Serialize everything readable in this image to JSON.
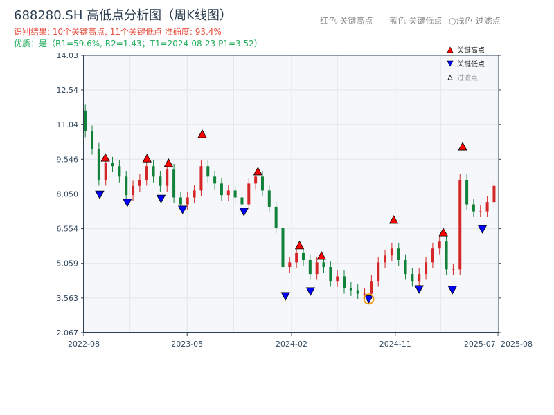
{
  "title": "688280.SH 高低点分析图（周K线图）",
  "result_line": "识别结果: 10个关键高点, 11个关键低点   准确度: 93.4%",
  "quality_line": "优质：是（R1=59.6%, R2=1.43；T1=2024-08-23 P1=3.52）",
  "top_notes": [
    "红色-关键高点",
    "蓝色-关键低点",
    "○浅色-过滤点"
  ],
  "colors": {
    "up": "#d62728",
    "down": "#12823a",
    "high_marker": "#ff0000",
    "low_marker": "#0000ff",
    "highlight": "#f39c12",
    "plot_bg": "#f5f7fa",
    "axis": "#2c3e50"
  },
  "chart_data": {
    "type": "candlestick",
    "xlim": [
      "2022-08-01",
      "2025-08-01"
    ],
    "ylim": [
      2.067,
      14.03
    ],
    "yticks": [
      "2.067",
      "3.563",
      "5.059",
      "6.554",
      "8.050",
      "9.546",
      "11.04",
      "12.54",
      "14.03"
    ],
    "xticks": [
      {
        "date": "2022-08-01",
        "label": "2022-08"
      },
      {
        "date": "2023-05-01",
        "label": "2023-05"
      },
      {
        "date": "2024-02-01",
        "label": "2024-02"
      },
      {
        "date": "2024-11-01",
        "label": "2024-11"
      },
      {
        "date": "2025-07-28",
        "label": "2025-07"
      },
      {
        "date": "2025-08-01",
        "label": "2025-08"
      }
    ],
    "grid": true,
    "dates": [
      "2022-08-05",
      "2022-08-23",
      "2022-09-10",
      "2022-09-28",
      "2022-10-16",
      "2022-11-03",
      "2022-11-21",
      "2022-12-09",
      "2022-12-27",
      "2023-01-14",
      "2023-02-01",
      "2023-02-19",
      "2023-03-09",
      "2023-03-27",
      "2023-04-14",
      "2023-05-02",
      "2023-05-20",
      "2023-06-07",
      "2023-06-25",
      "2023-07-13",
      "2023-07-31",
      "2023-08-18",
      "2023-09-05",
      "2023-09-23",
      "2023-10-11",
      "2023-10-29",
      "2023-11-16",
      "2023-12-04",
      "2023-12-22",
      "2024-01-09",
      "2024-01-27",
      "2024-02-14",
      "2024-03-03",
      "2024-03-21",
      "2024-04-08",
      "2024-04-26",
      "2024-05-14",
      "2024-06-01",
      "2024-06-19",
      "2024-07-07",
      "2024-07-25",
      "2024-08-12",
      "2024-08-30",
      "2024-09-17",
      "2024-10-05",
      "2024-10-23",
      "2024-11-10",
      "2024-11-28",
      "2024-12-16",
      "2025-01-03",
      "2025-01-21",
      "2025-02-08",
      "2025-02-26",
      "2025-03-16",
      "2025-04-03",
      "2025-04-21",
      "2025-05-09",
      "2025-05-27",
      "2025-06-14",
      "2025-07-02",
      "2025-07-20"
    ],
    "close": [
      10.75,
      10.0,
      8.66,
      9.4,
      9.25,
      8.8,
      8.0,
      8.4,
      8.66,
      9.25,
      8.8,
      8.4,
      9.1,
      7.9,
      7.6,
      7.9,
      8.2,
      9.25,
      8.8,
      8.5,
      8.0,
      8.2,
      7.9,
      7.6,
      8.5,
      8.8,
      8.2,
      7.5,
      6.6,
      4.9,
      5.1,
      5.5,
      5.2,
      4.6,
      5.1,
      4.9,
      4.3,
      4.5,
      4.0,
      3.9,
      3.75,
      3.75,
      4.3,
      5.1,
      5.4,
      5.7,
      5.2,
      4.6,
      4.3,
      4.6,
      5.1,
      5.7,
      6.0,
      4.8,
      4.8,
      8.66,
      7.6,
      7.3,
      7.3,
      7.7,
      8.4
    ],
    "key_highs": [
      {
        "date": "2022-09-27",
        "price": 9.61
      },
      {
        "date": "2023-01-15",
        "price": 9.58
      },
      {
        "date": "2023-03-13",
        "price": 9.38
      },
      {
        "date": "2023-06-10",
        "price": 10.63
      },
      {
        "date": "2023-11-04",
        "price": 9.02
      },
      {
        "date": "2024-02-22",
        "price": 5.83
      },
      {
        "date": "2024-04-20",
        "price": 5.38
      },
      {
        "date": "2024-10-28",
        "price": 6.93
      },
      {
        "date": "2025-03-08",
        "price": 6.39
      },
      {
        "date": "2025-04-28",
        "price": 10.09
      }
    ],
    "key_lows": [
      {
        "date": "2022-09-12",
        "price": 8.03
      },
      {
        "date": "2022-11-24",
        "price": 7.68
      },
      {
        "date": "2023-02-21",
        "price": 7.85
      },
      {
        "date": "2023-04-19",
        "price": 7.38
      },
      {
        "date": "2023-09-28",
        "price": 7.29
      },
      {
        "date": "2024-01-16",
        "price": 3.65
      },
      {
        "date": "2024-03-22",
        "price": 3.86
      },
      {
        "date": "2024-08-23",
        "price": 3.52
      },
      {
        "date": "2025-01-03",
        "price": 3.95
      },
      {
        "date": "2025-04-01",
        "price": 3.92
      },
      {
        "date": "2025-06-19",
        "price": 6.54
      }
    ],
    "highlight": {
      "date": "2024-08-23",
      "price": 3.52
    },
    "legend": {
      "placement": "top-right",
      "items": [
        "关键高点",
        "关键低点",
        "过滤点"
      ]
    }
  }
}
